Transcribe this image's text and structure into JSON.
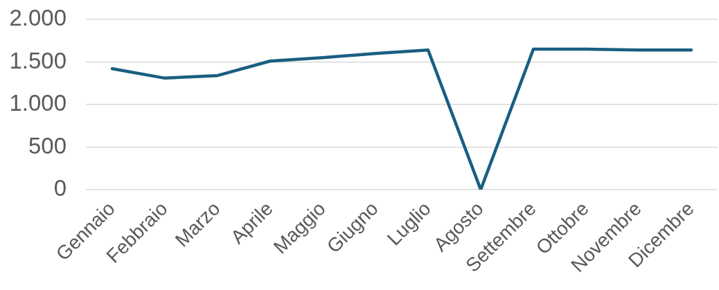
{
  "chart_data": {
    "type": "line",
    "categories": [
      "Gennaio",
      "Febbraio",
      "Marzo",
      "Aprile",
      "Maggio",
      "Giugno",
      "Luglio",
      "Agosto",
      "Settembre",
      "Ottobre",
      "Novembre",
      "Dicembre"
    ],
    "series": [
      {
        "color": "#1a5e82",
        "values": [
          1420,
          1310,
          1340,
          1510,
          1550,
          1600,
          1640,
          0,
          1650,
          1650,
          1640,
          1640
        ]
      }
    ],
    "ylim": [
      0,
      2000
    ],
    "yticks": [
      0,
      500,
      {
        "value": 1000,
        "label": "1.000"
      },
      {
        "value": 1500,
        "label": "1.500"
      },
      {
        "value": 2000,
        "label": "2.000"
      }
    ],
    "grid": "y",
    "legend": false,
    "marker": "none"
  }
}
